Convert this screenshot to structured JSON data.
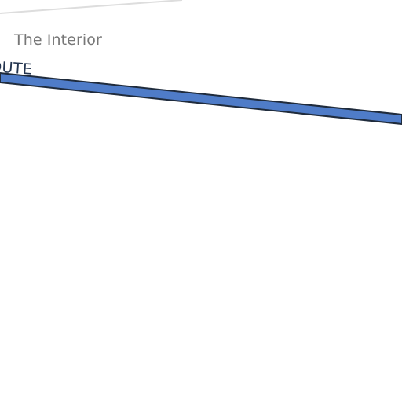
{
  "map": {
    "place_label": "The Interior",
    "route_label": "OUTE",
    "colors": {
      "background": "#ffffff",
      "route_fill": "#4f7cc8",
      "route_outline": "#1f2b3c",
      "boundary_line": "#dddddd",
      "place_label": "#777777",
      "route_label": "#23344f"
    }
  }
}
